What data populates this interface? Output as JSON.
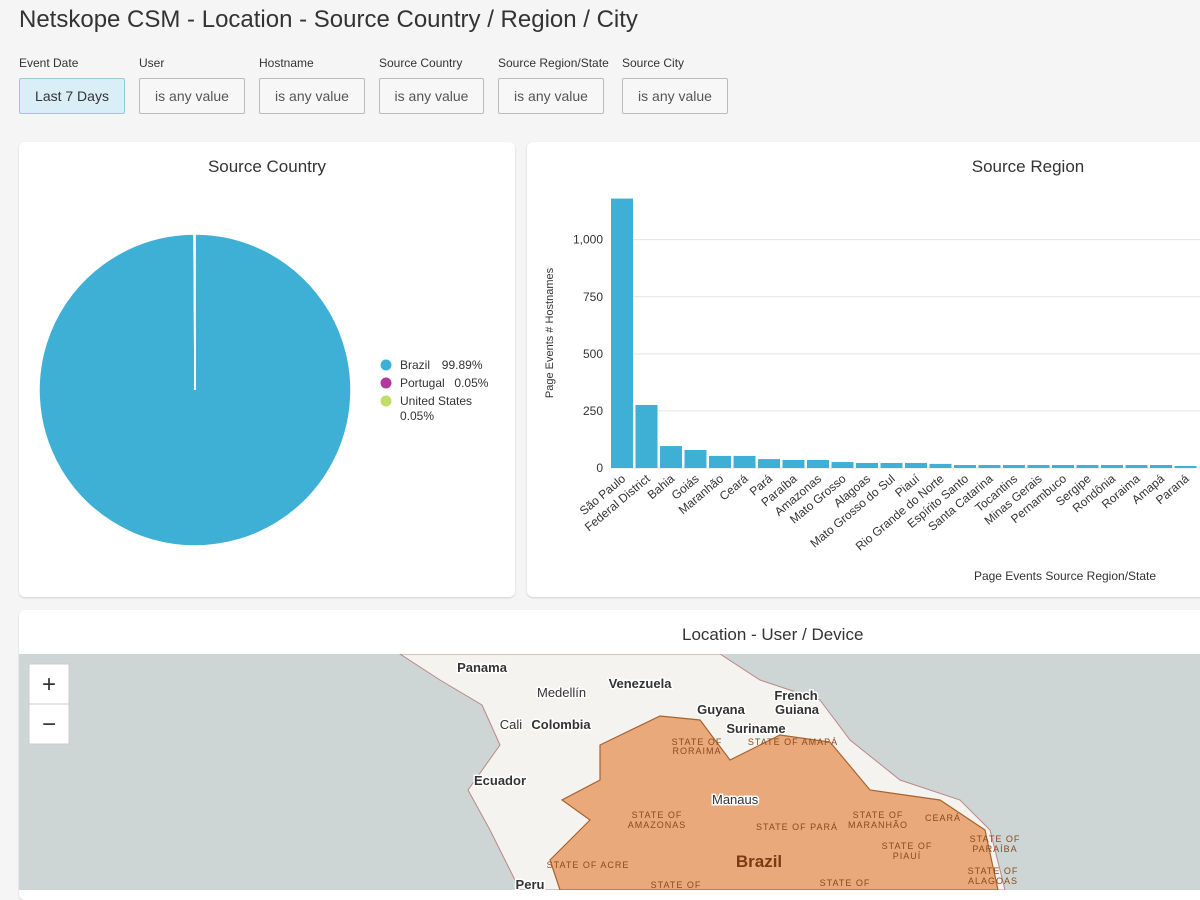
{
  "header": {
    "title": "Netskope CSM - Location - Source Country / Region / City"
  },
  "filters": [
    {
      "label": "Event Date",
      "value": "Last 7 Days"
    },
    {
      "label": "User",
      "value": "is any value"
    },
    {
      "label": "Hostname",
      "value": "is any value"
    },
    {
      "label": "Source Country",
      "value": "is any value"
    },
    {
      "label": "Source Region/State",
      "value": "is any value"
    },
    {
      "label": "Source City",
      "value": "is any value"
    }
  ],
  "chart_data": [
    {
      "type": "pie",
      "title": "Source Country",
      "categories": [
        "Brazil",
        "Portugal",
        "United States"
      ],
      "values": [
        99.89,
        0.05,
        0.05
      ],
      "value_labels": [
        "99.89%",
        "0.05%",
        "0.05%"
      ],
      "colors": [
        "#3eb0d5",
        "#b1399e",
        "#c2dd67"
      ],
      "legend": "right"
    },
    {
      "type": "bar",
      "title": "Source Region",
      "x_label": "Page Events Source Region/State",
      "y_label": "Page Events # Hostnames",
      "color": "#3eb0d5",
      "grid": true,
      "categories": [
        "São Paulo",
        "Federal District",
        "Bahia",
        "Goiás",
        "Maranhão",
        "Ceará",
        "Pará",
        "Paraíba",
        "Amazonas",
        "Mato Grosso",
        "Alagoas",
        "Mato Grosso do Sul",
        "Piauí",
        "Rio Grande do Norte",
        "Espírito Santo",
        "Santa Catarina",
        "Tocantins",
        "Minas Gerais",
        "Pernambuco",
        "Sergipe",
        "Rondônia",
        "Roraima",
        "Amapá",
        "Paraná"
      ],
      "values": [
        1180,
        276,
        96,
        79,
        53,
        53,
        39,
        35,
        35,
        26,
        22,
        22,
        22,
        18,
        13,
        13,
        13,
        13,
        13,
        13,
        13,
        13,
        13,
        9
      ],
      "ylim": [
        0,
        1200
      ],
      "yticks": [
        0,
        250,
        500,
        750,
        {
          "value": 1000,
          "label": "1,000"
        }
      ]
    }
  ],
  "map": {
    "title": "Location - User / Device",
    "zoom_in": "+",
    "zoom_out": "−",
    "labels": [
      "Panama",
      "Medellín",
      "Venezuela",
      "French",
      "Guiana",
      "Guyana",
      "Suriname",
      "Cali",
      "Colombia",
      "Ecuador",
      "Manaus",
      "Brazil",
      "Peru",
      "STATE OF",
      "RORAIMA",
      "STATE OF AMAPÁ",
      "STATE OF",
      "AMAZONAS",
      "STATE OF PARÁ",
      "STATE OF",
      "MARANHÃO",
      "CEARÁ",
      "STATE OF",
      "PIAUÍ",
      "STATE OF",
      "PARAÍBA",
      "STATE OF ACRE",
      "STATE OF",
      "STATE OF",
      "STATE OF",
      "ALAGOAS"
    ]
  }
}
